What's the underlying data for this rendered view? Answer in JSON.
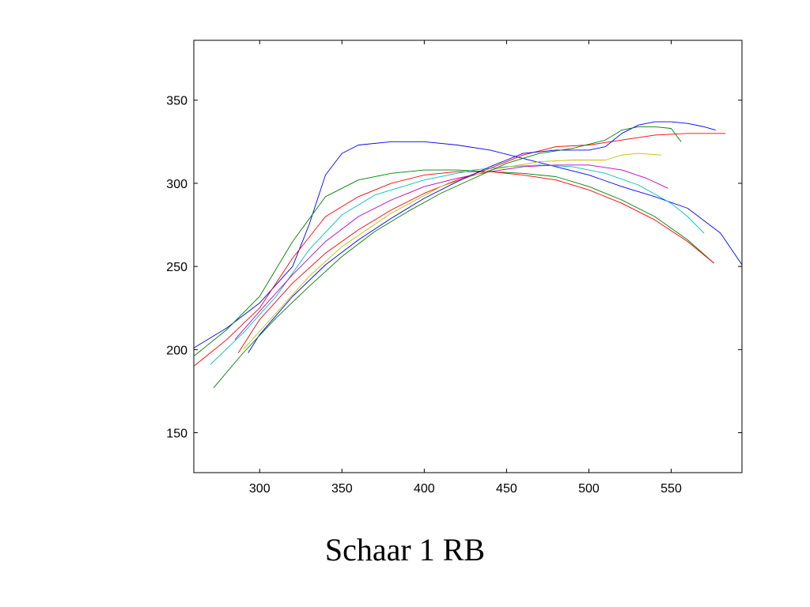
{
  "chart_data": {
    "type": "line",
    "title": "",
    "xlabel": "",
    "ylabel": "",
    "xlim": [
      260,
      593
    ],
    "ylim": [
      126,
      386
    ],
    "xticks": [
      300,
      350,
      400,
      450,
      500,
      550
    ],
    "yticks": [
      150,
      200,
      250,
      300,
      350
    ],
    "grid": false,
    "series": [
      {
        "color": "#0000ff",
        "x": [
          260,
          280,
          300,
          320,
          330,
          340,
          350,
          360,
          380,
          400,
          420,
          440,
          460,
          480,
          500,
          520,
          540,
          560,
          580,
          593
        ],
        "y": [
          201,
          213,
          228,
          250,
          275,
          305,
          318,
          323,
          325,
          325,
          323,
          320,
          315,
          310,
          305,
          298,
          292,
          285,
          270,
          251
        ]
      },
      {
        "color": "#008000",
        "x": [
          260,
          280,
          300,
          320,
          340,
          360,
          380,
          400,
          420,
          440,
          460,
          480,
          500,
          520,
          540,
          560,
          576
        ],
        "y": [
          196,
          212,
          232,
          265,
          292,
          302,
          306,
          308,
          308,
          307,
          306,
          304,
          298,
          290,
          280,
          266,
          252
        ]
      },
      {
        "color": "#ff0000",
        "x": [
          260,
          280,
          300,
          320,
          340,
          360,
          380,
          400,
          420,
          440,
          460,
          480,
          500,
          520,
          540,
          560,
          576
        ],
        "y": [
          190,
          206,
          225,
          255,
          280,
          292,
          300,
          305,
          307,
          307,
          305,
          302,
          296,
          288,
          278,
          265,
          252
        ]
      },
      {
        "color": "#00bfbf",
        "x": [
          270,
          290,
          310,
          330,
          350,
          370,
          400,
          430,
          450,
          470,
          490,
          510,
          530,
          550,
          560,
          570
        ],
        "y": [
          191,
          210,
          232,
          260,
          281,
          293,
          302,
          308,
          310,
          311,
          310,
          306,
          299,
          288,
          280,
          270
        ]
      },
      {
        "color": "#bf00bf",
        "x": [
          285,
          300,
          320,
          340,
          360,
          380,
          400,
          420,
          440,
          460,
          480,
          500,
          520,
          535,
          548
        ],
        "y": [
          206,
          223,
          245,
          265,
          280,
          290,
          298,
          303,
          307,
          310,
          311,
          311,
          308,
          303,
          297
        ]
      },
      {
        "color": "#ff0000",
        "x": [
          287,
          300,
          320,
          340,
          360,
          380,
          400,
          420,
          440,
          460,
          480,
          500,
          520,
          540,
          560,
          583
        ],
        "y": [
          198,
          218,
          240,
          258,
          272,
          284,
          294,
          302,
          309,
          317,
          322,
          323,
          326,
          329,
          330,
          330
        ]
      },
      {
        "color": "#bfbf00",
        "x": [
          290,
          310,
          330,
          350,
          380,
          410,
          440,
          470,
          490,
          510,
          520,
          530,
          544
        ],
        "y": [
          200,
          222,
          244,
          262,
          282,
          298,
          308,
          313,
          314,
          314,
          317,
          318,
          317
        ]
      },
      {
        "color": "#0000ff",
        "x": [
          293,
          300,
          320,
          340,
          360,
          380,
          400,
          420,
          440,
          460,
          480,
          500,
          510,
          520,
          530,
          540,
          550,
          560,
          570,
          577
        ],
        "y": [
          198,
          209,
          232,
          251,
          266,
          279,
          291,
          301,
          310,
          318,
          320,
          320,
          322,
          330,
          335,
          337,
          337,
          336,
          334,
          332
        ]
      },
      {
        "color": "#008000",
        "x": [
          272,
          290,
          310,
          330,
          350,
          370,
          390,
          410,
          430,
          450,
          470,
          490,
          510,
          520,
          530,
          540,
          550,
          556
        ],
        "y": [
          177,
          198,
          219,
          238,
          256,
          271,
          283,
          294,
          303,
          312,
          318,
          321,
          326,
          332,
          334,
          334,
          333,
          325
        ]
      }
    ]
  },
  "caption": "Schaar 1 RB"
}
